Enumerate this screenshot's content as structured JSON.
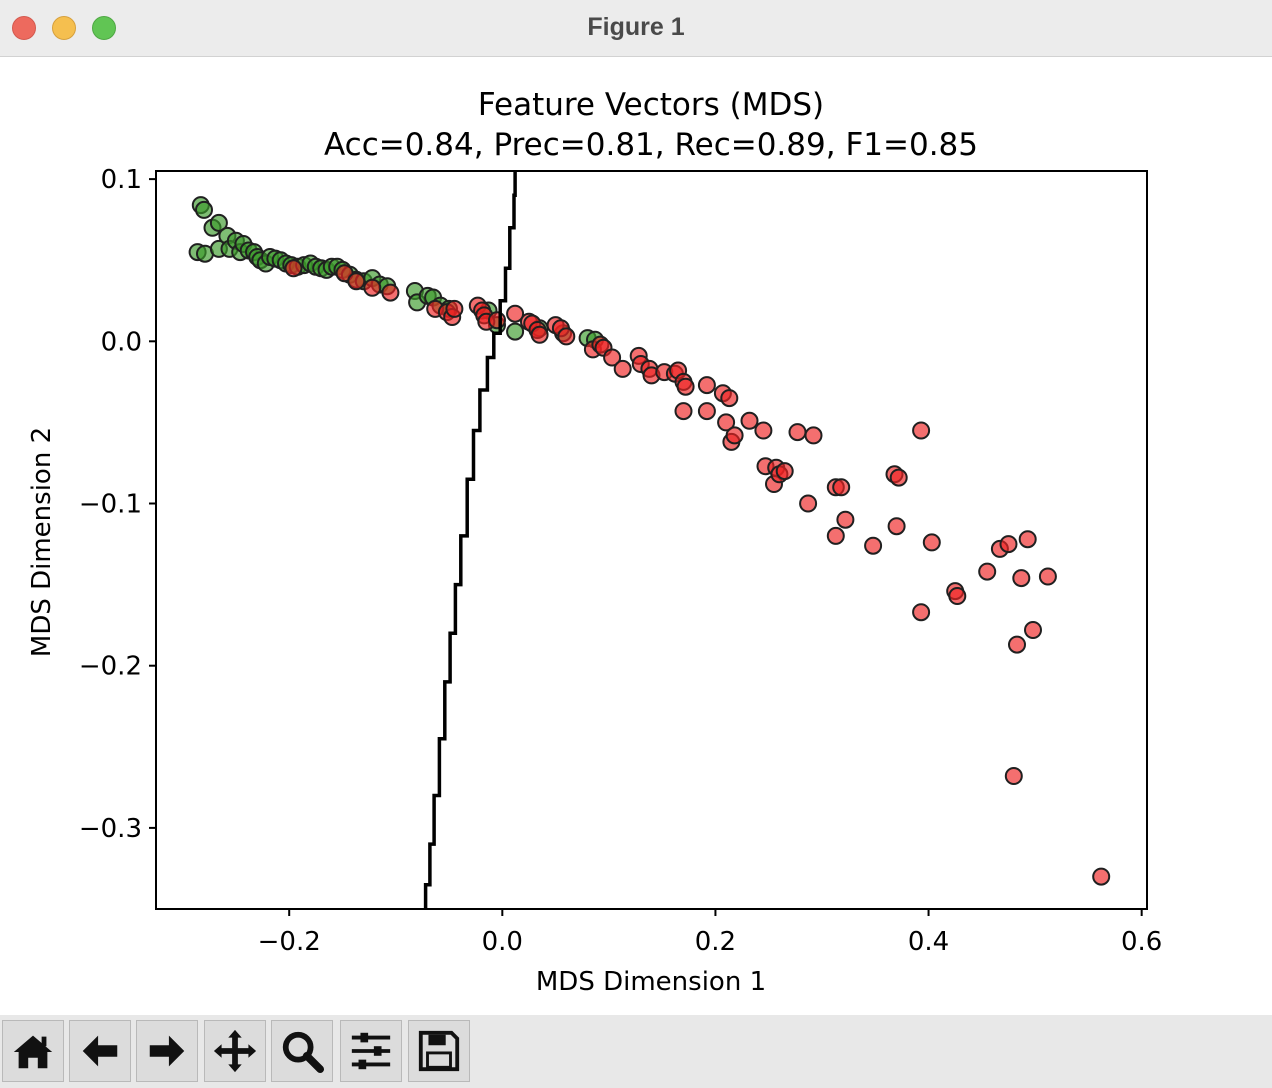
{
  "window": {
    "title": "Figure 1"
  },
  "toolbar": {
    "buttons": [
      {
        "name": "home-button",
        "icon": "home-icon"
      },
      {
        "name": "back-button",
        "icon": "arrow-left-icon"
      },
      {
        "name": "forward-button",
        "icon": "arrow-right-icon"
      },
      {
        "name": "pan-button",
        "icon": "move-icon"
      },
      {
        "name": "zoom-button",
        "icon": "magnifier-icon"
      },
      {
        "name": "configure-subplots-button",
        "icon": "sliders-icon"
      },
      {
        "name": "save-button",
        "icon": "floppy-disk-icon"
      }
    ]
  },
  "chart_data": {
    "type": "scatter",
    "title": "Feature Vectors (MDS)",
    "subtitle": "Acc=0.84, Prec=0.81, Rec=0.89, F1=0.85",
    "xlabel": "MDS Dimension 1",
    "ylabel": "MDS Dimension 2",
    "xlim": [
      -0.325,
      0.605
    ],
    "ylim": [
      -0.35,
      0.105
    ],
    "xticks": [
      -0.2,
      0.0,
      0.2,
      0.4,
      0.6
    ],
    "xtick_labels": [
      "−0.2",
      "0.0",
      "0.2",
      "0.4",
      "0.6"
    ],
    "yticks": [
      0.1,
      0.0,
      -0.1,
      -0.2,
      -0.3
    ],
    "ytick_labels": [
      "0.1",
      "0.0",
      "−0.1",
      "−0.2",
      "−0.3"
    ],
    "grid": false,
    "colors": {
      "green": "#3a9a2a",
      "red": "#ee2222",
      "edge": "#202020",
      "boundary": "#000000"
    },
    "series": [
      {
        "color": "green",
        "points": [
          [
            -0.283,
            0.084
          ],
          [
            -0.28,
            0.081
          ],
          [
            -0.286,
            0.055
          ],
          [
            -0.279,
            0.054
          ],
          [
            -0.272,
            0.07
          ],
          [
            -0.266,
            0.073
          ],
          [
            -0.266,
            0.057
          ],
          [
            -0.258,
            0.065
          ],
          [
            -0.256,
            0.057
          ],
          [
            -0.25,
            0.062
          ],
          [
            -0.246,
            0.055
          ],
          [
            -0.243,
            0.06
          ],
          [
            -0.238,
            0.056
          ],
          [
            -0.233,
            0.055
          ],
          [
            -0.23,
            0.052
          ],
          [
            -0.227,
            0.05
          ],
          [
            -0.222,
            0.048
          ],
          [
            -0.218,
            0.052
          ],
          [
            -0.213,
            0.051
          ],
          [
            -0.208,
            0.05
          ],
          [
            -0.203,
            0.048
          ],
          [
            -0.198,
            0.047
          ],
          [
            -0.192,
            0.046
          ],
          [
            -0.186,
            0.047
          ],
          [
            -0.18,
            0.048
          ],
          [
            -0.175,
            0.046
          ],
          [
            -0.17,
            0.045
          ],
          [
            -0.165,
            0.044
          ],
          [
            -0.16,
            0.046
          ],
          [
            -0.155,
            0.046
          ],
          [
            -0.15,
            0.044
          ],
          [
            -0.143,
            0.041
          ],
          [
            -0.137,
            0.038
          ],
          [
            -0.13,
            0.037
          ],
          [
            -0.122,
            0.039
          ],
          [
            -0.115,
            0.035
          ],
          [
            -0.108,
            0.034
          ],
          [
            -0.082,
            0.031
          ],
          [
            -0.08,
            0.024
          ],
          [
            -0.07,
            0.028
          ],
          [
            -0.065,
            0.027
          ],
          [
            -0.058,
            0.022
          ],
          [
            -0.05,
            0.02
          ],
          [
            -0.013,
            0.019
          ],
          [
            -0.005,
            0.01
          ],
          [
            0.012,
            0.006
          ],
          [
            0.035,
            0.008
          ],
          [
            0.057,
            0.005
          ],
          [
            0.08,
            0.002
          ],
          [
            0.087,
            0.001
          ]
        ]
      },
      {
        "color": "red",
        "points": [
          [
            -0.196,
            0.045
          ],
          [
            -0.148,
            0.042
          ],
          [
            -0.137,
            0.037
          ],
          [
            -0.122,
            0.033
          ],
          [
            -0.105,
            0.03
          ],
          [
            -0.063,
            0.02
          ],
          [
            -0.052,
            0.018
          ],
          [
            -0.047,
            0.015
          ],
          [
            -0.045,
            0.02
          ],
          [
            -0.023,
            0.022
          ],
          [
            -0.019,
            0.019
          ],
          [
            -0.017,
            0.016
          ],
          [
            -0.015,
            0.012
          ],
          [
            -0.005,
            0.013
          ],
          [
            0.012,
            0.017
          ],
          [
            0.025,
            0.012
          ],
          [
            0.028,
            0.011
          ],
          [
            0.033,
            0.007
          ],
          [
            0.035,
            0.004
          ],
          [
            0.05,
            0.01
          ],
          [
            0.055,
            0.008
          ],
          [
            0.06,
            0.003
          ],
          [
            0.085,
            -0.005
          ],
          [
            0.092,
            -0.002
          ],
          [
            0.095,
            -0.004
          ],
          [
            0.103,
            -0.01
          ],
          [
            0.113,
            -0.017
          ],
          [
            0.128,
            -0.009
          ],
          [
            0.13,
            -0.014
          ],
          [
            0.138,
            -0.017
          ],
          [
            0.14,
            -0.021
          ],
          [
            0.152,
            -0.019
          ],
          [
            0.162,
            -0.02
          ],
          [
            0.165,
            -0.018
          ],
          [
            0.17,
            -0.025
          ],
          [
            0.172,
            -0.028
          ],
          [
            0.17,
            -0.043
          ],
          [
            0.192,
            -0.027
          ],
          [
            0.192,
            -0.043
          ],
          [
            0.207,
            -0.032
          ],
          [
            0.21,
            -0.05
          ],
          [
            0.213,
            -0.035
          ],
          [
            0.215,
            -0.062
          ],
          [
            0.218,
            -0.058
          ],
          [
            0.232,
            -0.049
          ],
          [
            0.245,
            -0.055
          ],
          [
            0.247,
            -0.077
          ],
          [
            0.255,
            -0.088
          ],
          [
            0.257,
            -0.078
          ],
          [
            0.26,
            -0.082
          ],
          [
            0.265,
            -0.08
          ],
          [
            0.277,
            -0.056
          ],
          [
            0.287,
            -0.1
          ],
          [
            0.292,
            -0.058
          ],
          [
            0.313,
            -0.09
          ],
          [
            0.313,
            -0.12
          ],
          [
            0.318,
            -0.09
          ],
          [
            0.322,
            -0.11
          ],
          [
            0.348,
            -0.126
          ],
          [
            0.368,
            -0.082
          ],
          [
            0.372,
            -0.084
          ],
          [
            0.37,
            -0.114
          ],
          [
            0.393,
            -0.055
          ],
          [
            0.393,
            -0.167
          ],
          [
            0.403,
            -0.124
          ],
          [
            0.425,
            -0.154
          ],
          [
            0.427,
            -0.157
          ],
          [
            0.455,
            -0.142
          ],
          [
            0.467,
            -0.128
          ],
          [
            0.475,
            -0.125
          ],
          [
            0.48,
            -0.268
          ],
          [
            0.483,
            -0.187
          ],
          [
            0.487,
            -0.146
          ],
          [
            0.493,
            -0.122
          ],
          [
            0.498,
            -0.178
          ],
          [
            0.512,
            -0.145
          ],
          [
            0.562,
            -0.33
          ]
        ]
      }
    ],
    "boundary": [
      [
        -0.073,
        -0.352
      ],
      [
        -0.072,
        -0.335
      ],
      [
        -0.068,
        -0.31
      ],
      [
        -0.064,
        -0.28
      ],
      [
        -0.059,
        -0.245
      ],
      [
        -0.054,
        -0.21
      ],
      [
        -0.049,
        -0.18
      ],
      [
        -0.044,
        -0.15
      ],
      [
        -0.039,
        -0.12
      ],
      [
        -0.033,
        -0.085
      ],
      [
        -0.027,
        -0.055
      ],
      [
        -0.021,
        -0.03
      ],
      [
        -0.014,
        -0.01
      ],
      [
        -0.008,
        0.005
      ],
      [
        -0.002,
        0.025
      ],
      [
        0.003,
        0.045
      ],
      [
        0.007,
        0.07
      ],
      [
        0.011,
        0.09
      ],
      [
        0.012,
        0.105
      ]
    ]
  }
}
